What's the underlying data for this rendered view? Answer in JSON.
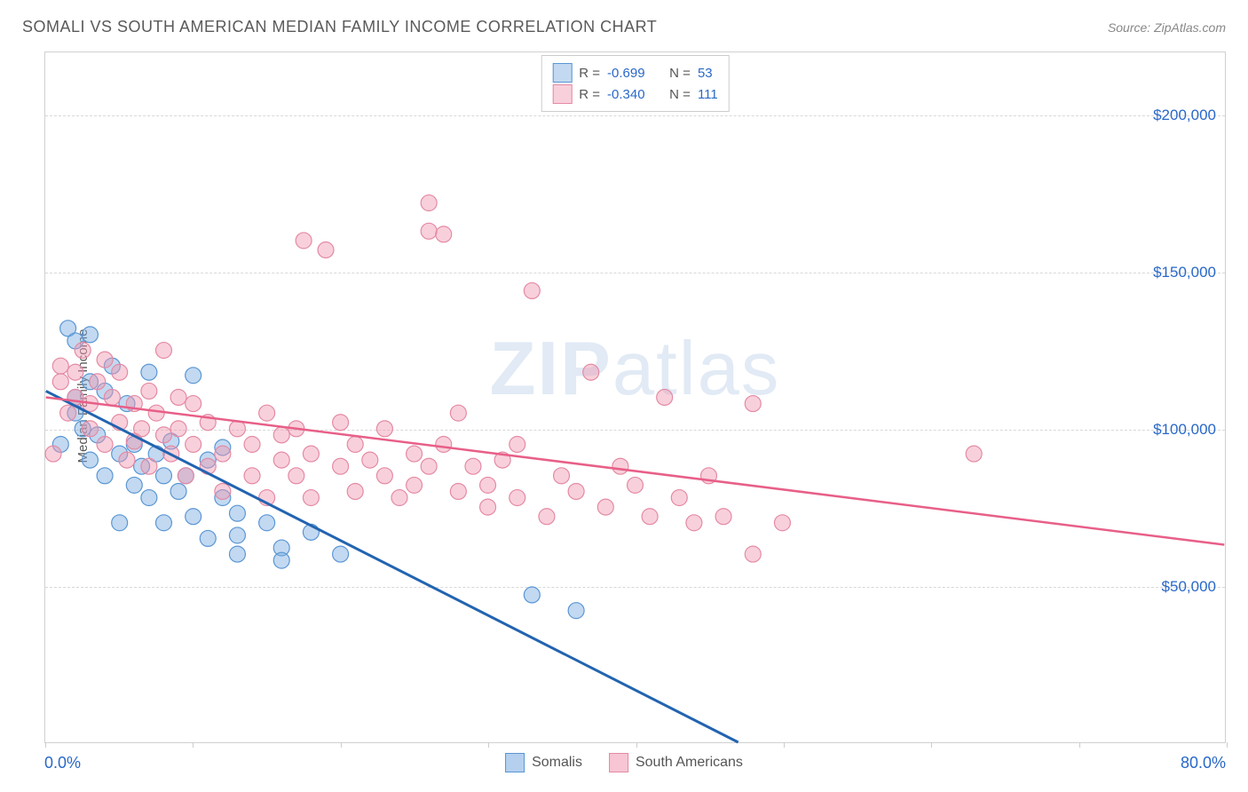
{
  "title": "SOMALI VS SOUTH AMERICAN MEDIAN FAMILY INCOME CORRELATION CHART",
  "source_label": "Source: ",
  "source_name": "ZipAtlas.com",
  "y_axis_label": "Median Family Income",
  "watermark_bold": "ZIP",
  "watermark_rest": "atlas",
  "chart": {
    "type": "scatter-with-regression",
    "xlim": [
      0,
      80
    ],
    "ylim": [
      0,
      220000
    ],
    "x_tick_positions": [
      0,
      10,
      20,
      30,
      40,
      50,
      60,
      70,
      80
    ],
    "x_min_label": "0.0%",
    "x_max_label": "80.0%",
    "y_ticks": [
      {
        "v": 50000,
        "label": "$50,000"
      },
      {
        "v": 100000,
        "label": "$100,000"
      },
      {
        "v": 150000,
        "label": "$150,000"
      },
      {
        "v": 200000,
        "label": "$200,000"
      }
    ],
    "grid_color": "#d8d8d8",
    "background_color": "#ffffff",
    "series": [
      {
        "name": "Somalis",
        "fill_color": "rgba(120,170,225,0.45)",
        "stroke_color": "#5a96d4",
        "line_color": "#2264b0",
        "line_width": 3,
        "marker_radius": 9,
        "r_value": "-0.699",
        "n_value": "53",
        "regression": {
          "x1": 0,
          "y1": 112000,
          "x2": 47,
          "y2": 0
        },
        "points": [
          [
            1,
            95000
          ],
          [
            1.5,
            132000
          ],
          [
            2,
            128000
          ],
          [
            2,
            110000
          ],
          [
            2,
            105000
          ],
          [
            2.5,
            100000
          ],
          [
            3,
            130000
          ],
          [
            3,
            115000
          ],
          [
            3,
            90000
          ],
          [
            3.5,
            98000
          ],
          [
            4,
            112000
          ],
          [
            4,
            85000
          ],
          [
            4.5,
            120000
          ],
          [
            5,
            92000
          ],
          [
            5,
            70000
          ],
          [
            5.5,
            108000
          ],
          [
            6,
            95000
          ],
          [
            6,
            82000
          ],
          [
            6.5,
            88000
          ],
          [
            7,
            118000
          ],
          [
            7,
            78000
          ],
          [
            7.5,
            92000
          ],
          [
            8,
            85000
          ],
          [
            8,
            70000
          ],
          [
            8.5,
            96000
          ],
          [
            9,
            80000
          ],
          [
            9.5,
            85000
          ],
          [
            10,
            117000
          ],
          [
            10,
            72000
          ],
          [
            11,
            90000
          ],
          [
            11,
            65000
          ],
          [
            12,
            78000
          ],
          [
            12,
            94000
          ],
          [
            13,
            73000
          ],
          [
            13,
            66000
          ],
          [
            13,
            60000
          ],
          [
            15,
            70000
          ],
          [
            16,
            62000
          ],
          [
            16,
            58000
          ],
          [
            18,
            67000
          ],
          [
            20,
            60000
          ],
          [
            33,
            47000
          ],
          [
            36,
            42000
          ]
        ]
      },
      {
        "name": "South Americans",
        "fill_color": "rgba(240,150,175,0.45)",
        "stroke_color": "#e48aa4",
        "line_color": "#e85f88",
        "line_width": 2.5,
        "marker_radius": 9,
        "r_value": "-0.340",
        "n_value": "111",
        "regression": {
          "x1": 0,
          "y1": 110000,
          "x2": 80,
          "y2": 63000
        },
        "points": [
          [
            0.5,
            92000
          ],
          [
            1,
            115000
          ],
          [
            1,
            120000
          ],
          [
            1.5,
            105000
          ],
          [
            2,
            118000
          ],
          [
            2,
            110000
          ],
          [
            2.5,
            125000
          ],
          [
            3,
            108000
          ],
          [
            3,
            100000
          ],
          [
            3.5,
            115000
          ],
          [
            4,
            122000
          ],
          [
            4,
            95000
          ],
          [
            4.5,
            110000
          ],
          [
            5,
            102000
          ],
          [
            5,
            118000
          ],
          [
            5.5,
            90000
          ],
          [
            6,
            108000
          ],
          [
            6,
            96000
          ],
          [
            6.5,
            100000
          ],
          [
            7,
            112000
          ],
          [
            7,
            88000
          ],
          [
            7.5,
            105000
          ],
          [
            8,
            125000
          ],
          [
            8,
            98000
          ],
          [
            8.5,
            92000
          ],
          [
            9,
            110000
          ],
          [
            9,
            100000
          ],
          [
            9.5,
            85000
          ],
          [
            10,
            95000
          ],
          [
            10,
            108000
          ],
          [
            11,
            88000
          ],
          [
            11,
            102000
          ],
          [
            12,
            92000
          ],
          [
            12,
            80000
          ],
          [
            13,
            100000
          ],
          [
            14,
            95000
          ],
          [
            14,
            85000
          ],
          [
            15,
            105000
          ],
          [
            15,
            78000
          ],
          [
            16,
            98000
          ],
          [
            16,
            90000
          ],
          [
            17,
            85000
          ],
          [
            17,
            100000
          ],
          [
            18,
            92000
          ],
          [
            18,
            78000
          ],
          [
            17.5,
            160000
          ],
          [
            19,
            157000
          ],
          [
            20,
            88000
          ],
          [
            20,
            102000
          ],
          [
            21,
            80000
          ],
          [
            21,
            95000
          ],
          [
            22,
            90000
          ],
          [
            23,
            85000
          ],
          [
            23,
            100000
          ],
          [
            24,
            78000
          ],
          [
            25,
            92000
          ],
          [
            25,
            82000
          ],
          [
            26,
            88000
          ],
          [
            26,
            163000
          ],
          [
            26,
            172000
          ],
          [
            27,
            162000
          ],
          [
            27,
            95000
          ],
          [
            28,
            80000
          ],
          [
            28,
            105000
          ],
          [
            29,
            88000
          ],
          [
            30,
            82000
          ],
          [
            30,
            75000
          ],
          [
            31,
            90000
          ],
          [
            32,
            78000
          ],
          [
            32,
            95000
          ],
          [
            33,
            144000
          ],
          [
            34,
            72000
          ],
          [
            35,
            85000
          ],
          [
            36,
            80000
          ],
          [
            37,
            118000
          ],
          [
            38,
            75000
          ],
          [
            39,
            88000
          ],
          [
            40,
            82000
          ],
          [
            41,
            72000
          ],
          [
            42,
            110000
          ],
          [
            43,
            78000
          ],
          [
            44,
            70000
          ],
          [
            45,
            85000
          ],
          [
            46,
            72000
          ],
          [
            48,
            60000
          ],
          [
            50,
            70000
          ],
          [
            63,
            92000
          ],
          [
            48,
            108000
          ]
        ]
      }
    ],
    "legend_r_label": "R =",
    "legend_n_label": "N ="
  },
  "bottom_legend": {
    "items": [
      {
        "label": "Somalis",
        "fill": "rgba(120,170,225,0.55)",
        "stroke": "#5a96d4"
      },
      {
        "label": "South Americans",
        "fill": "rgba(240,150,175,0.55)",
        "stroke": "#e48aa4"
      }
    ]
  }
}
